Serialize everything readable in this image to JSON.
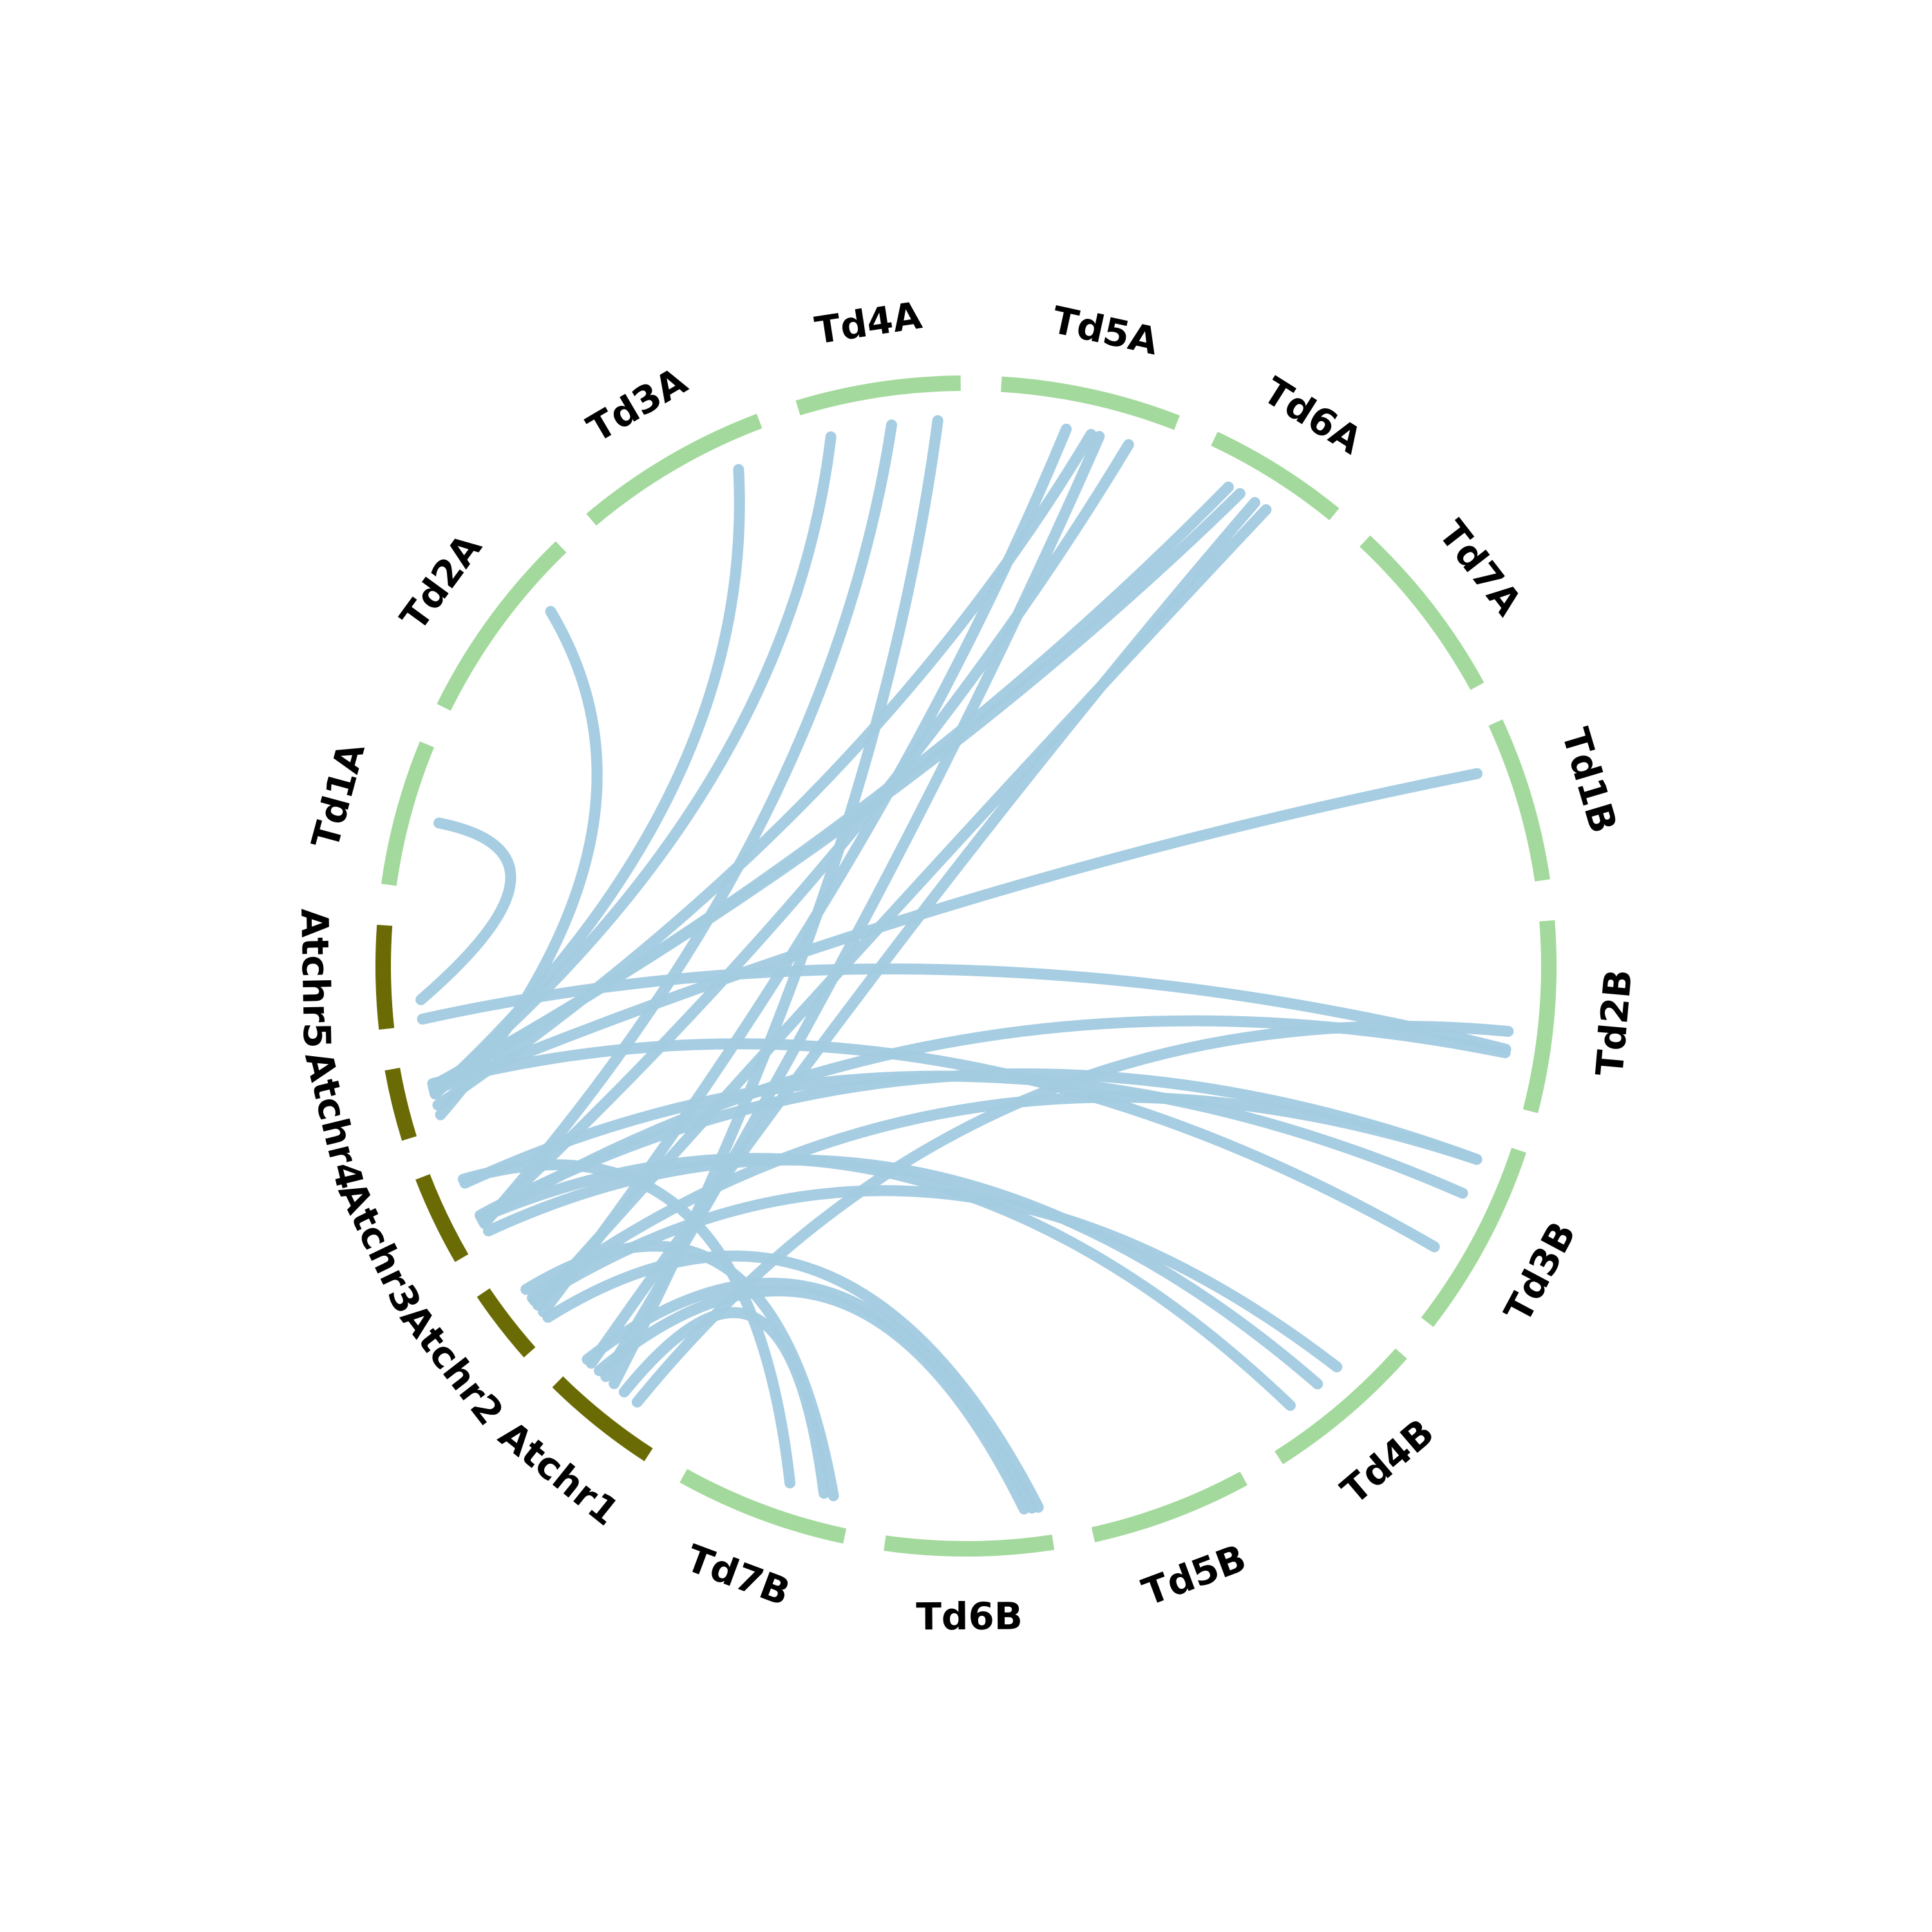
{
  "colors": {
    "arabidopsis": "#6b6b05",
    "wheat": "#a3d99c",
    "link": "#a3cbe1",
    "label": "#000000",
    "background": "#ffffff"
  },
  "chromosomes": [
    {
      "name": "Atchr1",
      "group": "arabidopsis",
      "size": 30.4
    },
    {
      "name": "Atchr2",
      "group": "arabidopsis",
      "size": 19.7
    },
    {
      "name": "Atchr3",
      "group": "arabidopsis",
      "size": 23.5
    },
    {
      "name": "Atchr4",
      "group": "arabidopsis",
      "size": 18.6
    },
    {
      "name": "Atchr5",
      "group": "arabidopsis",
      "size": 27.0
    },
    {
      "name": "Td1A",
      "group": "wheat",
      "size": 38
    },
    {
      "name": "Td2A",
      "group": "wheat",
      "size": 52
    },
    {
      "name": "Td3A",
      "group": "wheat",
      "size": 51
    },
    {
      "name": "Td4A",
      "group": "wheat",
      "size": 43
    },
    {
      "name": "Td5A",
      "group": "wheat",
      "size": 47
    },
    {
      "name": "Td6A",
      "group": "wheat",
      "size": 37
    },
    {
      "name": "Td7A",
      "group": "wheat",
      "size": 48
    },
    {
      "name": "Td1B",
      "group": "wheat",
      "size": 43
    },
    {
      "name": "Td2B",
      "group": "wheat",
      "size": 50
    },
    {
      "name": "Td3B",
      "group": "wheat",
      "size": 51
    },
    {
      "name": "Td4B",
      "group": "wheat",
      "size": 42
    },
    {
      "name": "Td5B",
      "group": "wheat",
      "size": 42
    },
    {
      "name": "Td6B",
      "group": "wheat",
      "size": 44
    },
    {
      "name": "Td7B",
      "group": "wheat",
      "size": 45
    }
  ],
  "links": [
    {
      "source": "Atchr5",
      "source_pos": 0.26,
      "target": "Td1A",
      "target_pos": 0.5
    },
    {
      "source": "Atchr5",
      "source_pos": 0.06,
      "target": "Td2B",
      "target_pos": 0.7
    },
    {
      "source": "Atchr4",
      "source_pos": 0.2,
      "target": "Td2A",
      "target_pos": 0.72
    },
    {
      "source": "Atchr4",
      "source_pos": 0.52,
      "target": "Td3A",
      "target_pos": 0.8
    },
    {
      "source": "Atchr4",
      "source_pos": 0.55,
      "target": "Td4A",
      "target_pos": 0.15
    },
    {
      "source": "Atchr4",
      "source_pos": 0.58,
      "target": "Td1B",
      "target_pos": 0.25
    },
    {
      "source": "Atchr4",
      "source_pos": 0.62,
      "target": "Td6A",
      "target_pos": 0.25
    },
    {
      "source": "Atchr4",
      "source_pos": 0.65,
      "target": "Td6A",
      "target_pos": 0.35
    },
    {
      "source": "Atchr4",
      "source_pos": 0.35,
      "target": "Td5A",
      "target_pos": 0.55
    },
    {
      "source": "Atchr4",
      "source_pos": 0.68,
      "target": "Td3B",
      "target_pos": 0.65
    },
    {
      "source": "Atchr3",
      "source_pos": 0.22,
      "target": "Td4A",
      "target_pos": 0.55
    },
    {
      "source": "Atchr3",
      "source_pos": 0.25,
      "target": "Td5A",
      "target_pos": 0.78
    },
    {
      "source": "Atchr3",
      "source_pos": 0.28,
      "target": "Td2B",
      "target_pos": 0.72
    },
    {
      "source": "Atchr3",
      "source_pos": 0.3,
      "target": "Td4B",
      "target_pos": 0.75
    },
    {
      "source": "Atchr3",
      "source_pos": 0.33,
      "target": "Td3B",
      "target_pos": 0.12
    },
    {
      "source": "Atchr3",
      "source_pos": 0.75,
      "target": "Td3B",
      "target_pos": 0.32
    },
    {
      "source": "Atchr3",
      "source_pos": 0.12,
      "target": "Td4B",
      "target_pos": 0.52
    },
    {
      "source": "Atchr3",
      "source_pos": 0.8,
      "target": "Td7B",
      "target_pos": 0.4
    },
    {
      "source": "Atchr2",
      "source_pos": 0.3,
      "target": "Td5A",
      "target_pos": 0.4
    },
    {
      "source": "Atchr2",
      "source_pos": 0.42,
      "target": "Td6A",
      "target_pos": 0.58
    },
    {
      "source": "Atchr2",
      "source_pos": 0.5,
      "target": "Td4B",
      "target_pos": 0.35
    },
    {
      "source": "Atchr2",
      "source_pos": 0.55,
      "target": "Td3B",
      "target_pos": 0.12
    },
    {
      "source": "Atchr2",
      "source_pos": 0.7,
      "target": "Td7B",
      "target_pos": 0.12
    },
    {
      "source": "Atchr2",
      "source_pos": 0.2,
      "target": "Td6B",
      "target_pos": 0.06
    },
    {
      "source": "Atchr1",
      "source_pos": 0.62,
      "target": "Td4A",
      "target_pos": 0.85
    },
    {
      "source": "Atchr1",
      "source_pos": 0.72,
      "target": "Td5A",
      "target_pos": 0.6
    },
    {
      "source": "Atchr1",
      "source_pos": 0.8,
      "target": "Td6B",
      "target_pos": 0.15
    },
    {
      "source": "Atchr1",
      "source_pos": 0.5,
      "target": "Td7B",
      "target_pos": 0.18
    },
    {
      "source": "Atchr1",
      "source_pos": 0.35,
      "target": "Td2B",
      "target_pos": 0.6
    },
    {
      "source": "Atchr1",
      "source_pos": 0.95,
      "target": "Td6B",
      "target_pos": 0.1
    },
    {
      "source": "Atchr1",
      "source_pos": 0.9,
      "target": "Td6A",
      "target_pos": 0.48
    }
  ]
}
